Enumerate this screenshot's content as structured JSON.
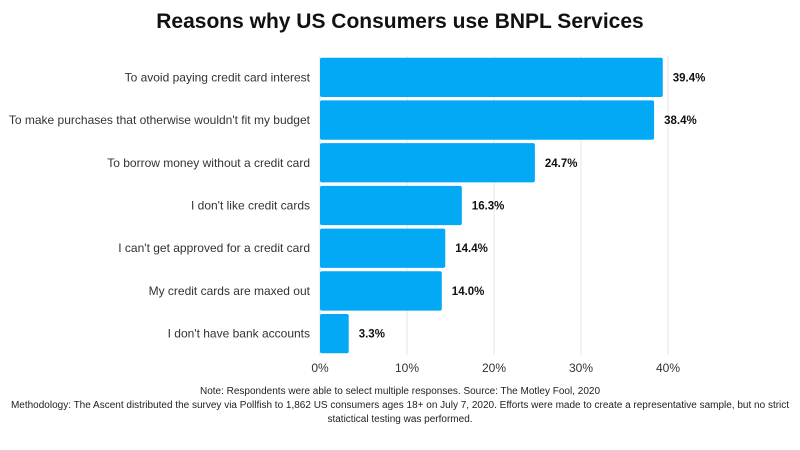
{
  "chart_data": {
    "type": "bar",
    "orientation": "horizontal",
    "title": "Reasons why US Consumers use BNPL Services",
    "categories": [
      "To avoid paying credit card interest",
      "To make purchases that otherwise wouldn't fit my budget",
      "To borrow money without a credit card",
      "I don't like credit cards",
      "I can't get approved for a credit card",
      "My credit cards are maxed out",
      "I don't have bank accounts"
    ],
    "values": [
      39.4,
      38.4,
      24.7,
      16.3,
      14.4,
      14.0,
      3.3
    ],
    "value_labels": [
      "39.4%",
      "38.4%",
      "24.7%",
      "16.3%",
      "14.4%",
      "14.0%",
      "3.3%"
    ],
    "xlim": [
      0,
      40
    ],
    "x_ticks": [
      0,
      10,
      20,
      30,
      40
    ],
    "x_tick_labels": [
      "0%",
      "10%",
      "20%",
      "30%",
      "40%"
    ],
    "bar_color": "#03a9f4",
    "grid": true,
    "legend": "none"
  },
  "notes": {
    "line1": "Note: Respondents were able to select multiple responses. Source: The Motley Fool, 2020",
    "line2": "Methodology: The Ascent distributed the survey via Pollfish to 1,862 US consumers ages 18+ on July 7, 2020. Efforts were made to create a representative sample, but no strict",
    "line3": "statictical testing was performed."
  }
}
